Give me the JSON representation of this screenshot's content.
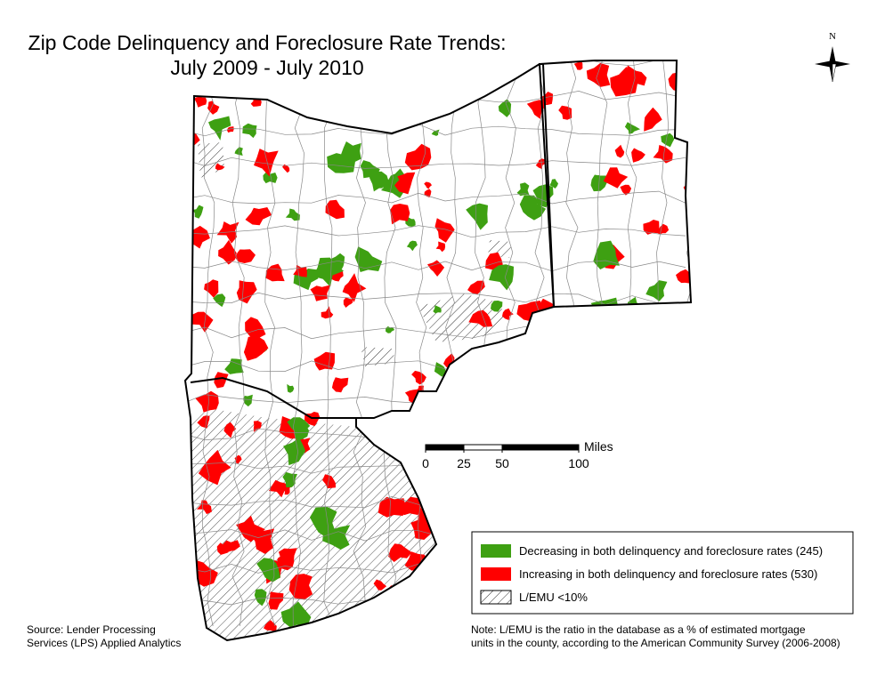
{
  "title": [
    "Zip Code Delinquency and Foreclosure Rate Trends:",
    "July 2009 - July 2010"
  ],
  "compass": "N",
  "scale_bar": {
    "unit": "Miles",
    "ticks": [
      0,
      25,
      50,
      100
    ]
  },
  "legend": [
    {
      "label": "Decreasing in both delinquency and foreclosure rates (245)",
      "color": "#3ea012"
    },
    {
      "label": "Increasing in both delinquency and foreclosure rates (530)",
      "color": "#ff0000"
    },
    {
      "label": "L/EMU <10%"
    }
  ],
  "source": [
    "Source: Lender Processing",
    "Services (LPS) Applied Analytics"
  ],
  "note": [
    "Note: L/EMU is the ratio in the database as a % of estimated mortgage",
    "units in the county, according to the American Community Survey (2006-2008)"
  ]
}
